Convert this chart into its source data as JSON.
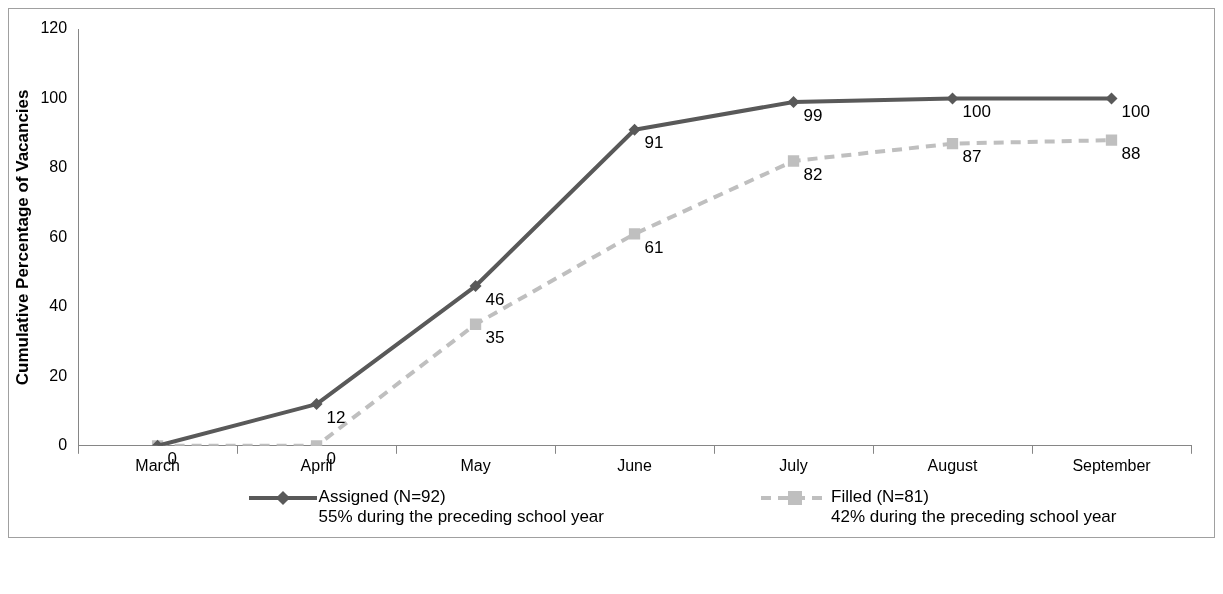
{
  "chart_data": {
    "type": "line",
    "ylabel": "Cumulative Percentage of Vacancies",
    "categories": [
      "March",
      "April",
      "May",
      "June",
      "July",
      "August",
      "September"
    ],
    "series": [
      {
        "name": "Assigned (N=92)",
        "color": "#595959",
        "values": [
          0,
          12,
          46,
          91,
          99,
          100,
          100
        ],
        "marker": "diamond",
        "line_style": "solid"
      },
      {
        "name": "Filled (N=81)",
        "color": "#bfbfbf",
        "values": [
          0,
          0,
          35,
          61,
          82,
          87,
          88
        ],
        "value_labels": [
          null,
          "0",
          "35",
          "61",
          "82",
          "87",
          "88"
        ],
        "marker": "square",
        "line_style": "dashed"
      }
    ],
    "annotations": [
      "55% during the preceding school year",
      "42% during the preceding school year"
    ],
    "ylim": [
      0,
      120
    ],
    "yticks": [
      0,
      20,
      40,
      60,
      80,
      100,
      120
    ],
    "grid": false,
    "legend": "bottom",
    "data_labels": true
  }
}
